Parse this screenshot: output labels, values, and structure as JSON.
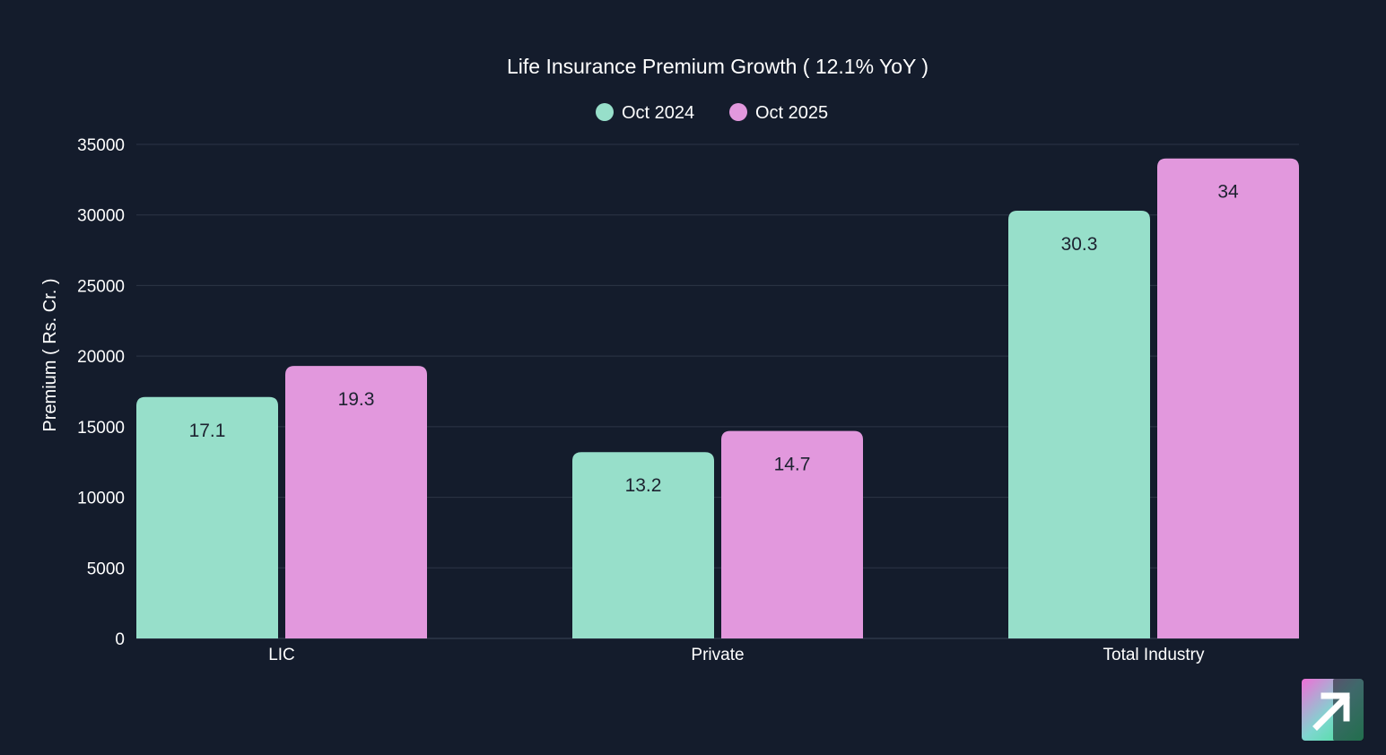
{
  "chart_data": {
    "type": "bar",
    "title": "Life Insurance Premium Growth ( 12.1% YoY )",
    "xlabel": "",
    "ylabel": "Premium ( Rs. Cr. )",
    "categories": [
      "LIC",
      "Private",
      "Total Industry"
    ],
    "series": [
      {
        "name": "Oct 2024",
        "color": "#97dfca",
        "values": [
          17100,
          13200,
          30300
        ],
        "labels": [
          "17.1",
          "13.2",
          "30.3"
        ]
      },
      {
        "name": "Oct 2025",
        "color": "#e298dd",
        "values": [
          19300,
          14700,
          34000
        ],
        "labels": [
          "19.3",
          "14.7",
          "34"
        ]
      }
    ],
    "yticks": [
      0,
      5000,
      10000,
      15000,
      20000,
      25000,
      30000,
      35000
    ],
    "ylim": [
      0,
      35000
    ],
    "grid": true,
    "legend": "top-center"
  },
  "colors": {
    "background": "#141c2c",
    "text": "#ffffff",
    "grid": "#2c3546",
    "data_label": "#1d2230"
  },
  "logo": {
    "icon": "arrow-up-right-icon"
  }
}
